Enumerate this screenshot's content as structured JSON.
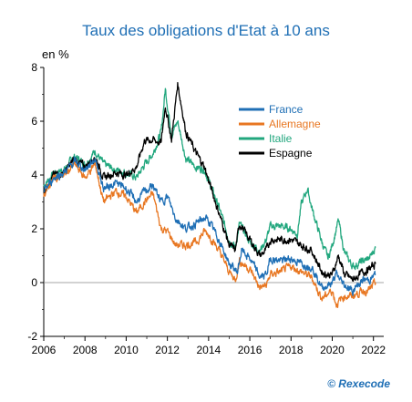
{
  "chart_data": {
    "type": "line",
    "title": "Taux des obligations d'Etat à 10 ans",
    "ylabel": "en %",
    "source": "© Rexecode",
    "xlim": [
      2006,
      2022.5
    ],
    "ylim": [
      -2,
      8
    ],
    "x_ticks": [
      "2006",
      "2008",
      "2010",
      "2012",
      "2014",
      "2016",
      "2018",
      "2020",
      "2022"
    ],
    "y_ticks": [
      "-2",
      "0",
      "2",
      "4",
      "6",
      "8"
    ],
    "grid": false,
    "legend_position": "top-right",
    "series": [
      {
        "name": "France",
        "color": "#1f6fb5",
        "points": [
          [
            2006.0,
            3.4
          ],
          [
            2006.5,
            3.9
          ],
          [
            2007.0,
            4.1
          ],
          [
            2007.5,
            4.5
          ],
          [
            2008.0,
            4.2
          ],
          [
            2008.5,
            4.6
          ],
          [
            2008.9,
            3.5
          ],
          [
            2009.5,
            3.7
          ],
          [
            2010.0,
            3.5
          ],
          [
            2010.5,
            3.0
          ],
          [
            2010.9,
            3.4
          ],
          [
            2011.3,
            3.6
          ],
          [
            2011.7,
            3.0
          ],
          [
            2012.0,
            3.2
          ],
          [
            2012.4,
            2.4
          ],
          [
            2012.9,
            2.0
          ],
          [
            2013.4,
            2.2
          ],
          [
            2013.8,
            2.4
          ],
          [
            2014.0,
            2.3
          ],
          [
            2014.5,
            1.6
          ],
          [
            2015.0,
            0.7
          ],
          [
            2015.4,
            0.4
          ],
          [
            2015.6,
            1.2
          ],
          [
            2016.0,
            0.9
          ],
          [
            2016.5,
            0.2
          ],
          [
            2016.8,
            0.3
          ],
          [
            2017.0,
            0.9
          ],
          [
            2017.5,
            0.8
          ],
          [
            2018.0,
            0.9
          ],
          [
            2018.5,
            0.7
          ],
          [
            2019.0,
            0.6
          ],
          [
            2019.5,
            -0.2
          ],
          [
            2019.8,
            -0.1
          ],
          [
            2020.0,
            0.0
          ],
          [
            2020.2,
            0.3
          ],
          [
            2020.6,
            -0.1
          ],
          [
            2021.0,
            -0.3
          ],
          [
            2021.5,
            0.1
          ],
          [
            2021.8,
            0.1
          ],
          [
            2022.1,
            0.3
          ]
        ]
      },
      {
        "name": "Allemagne",
        "color": "#e87722",
        "points": [
          [
            2006.0,
            3.3
          ],
          [
            2006.5,
            3.9
          ],
          [
            2007.0,
            4.0
          ],
          [
            2007.5,
            4.4
          ],
          [
            2008.0,
            3.9
          ],
          [
            2008.5,
            4.4
          ],
          [
            2008.9,
            3.0
          ],
          [
            2009.5,
            3.4
          ],
          [
            2010.0,
            3.2
          ],
          [
            2010.5,
            2.6
          ],
          [
            2010.9,
            3.0
          ],
          [
            2011.3,
            3.3
          ],
          [
            2011.7,
            2.0
          ],
          [
            2012.0,
            1.9
          ],
          [
            2012.4,
            1.4
          ],
          [
            2012.9,
            1.4
          ],
          [
            2013.4,
            1.5
          ],
          [
            2013.8,
            1.9
          ],
          [
            2014.0,
            1.8
          ],
          [
            2014.5,
            1.2
          ],
          [
            2015.0,
            0.4
          ],
          [
            2015.3,
            0.1
          ],
          [
            2015.5,
            0.8
          ],
          [
            2016.0,
            0.5
          ],
          [
            2016.5,
            -0.2
          ],
          [
            2016.8,
            -0.1
          ],
          [
            2017.0,
            0.3
          ],
          [
            2017.5,
            0.4
          ],
          [
            2018.0,
            0.6
          ],
          [
            2018.5,
            0.4
          ],
          [
            2019.0,
            0.2
          ],
          [
            2019.5,
            -0.6
          ],
          [
            2019.8,
            -0.4
          ],
          [
            2020.0,
            -0.3
          ],
          [
            2020.2,
            -0.8
          ],
          [
            2020.6,
            -0.5
          ],
          [
            2021.0,
            -0.5
          ],
          [
            2021.5,
            -0.3
          ],
          [
            2021.8,
            -0.3
          ],
          [
            2022.1,
            0.0
          ]
        ]
      },
      {
        "name": "Italie",
        "color": "#22a77e",
        "points": [
          [
            2006.0,
            3.6
          ],
          [
            2006.5,
            4.1
          ],
          [
            2007.0,
            4.2
          ],
          [
            2007.5,
            4.7
          ],
          [
            2008.0,
            4.4
          ],
          [
            2008.5,
            4.9
          ],
          [
            2008.9,
            4.4
          ],
          [
            2009.5,
            4.2
          ],
          [
            2010.0,
            4.1
          ],
          [
            2010.5,
            3.9
          ],
          [
            2010.9,
            4.4
          ],
          [
            2011.3,
            4.8
          ],
          [
            2011.7,
            5.6
          ],
          [
            2011.9,
            7.2
          ],
          [
            2012.2,
            5.5
          ],
          [
            2012.5,
            6.0
          ],
          [
            2012.9,
            4.6
          ],
          [
            2013.4,
            4.3
          ],
          [
            2013.8,
            4.2
          ],
          [
            2014.0,
            3.8
          ],
          [
            2014.5,
            2.8
          ],
          [
            2015.0,
            1.6
          ],
          [
            2015.3,
            1.3
          ],
          [
            2015.5,
            2.2
          ],
          [
            2016.0,
            1.5
          ],
          [
            2016.5,
            1.2
          ],
          [
            2016.8,
            1.6
          ],
          [
            2017.0,
            2.1
          ],
          [
            2017.5,
            2.1
          ],
          [
            2018.0,
            2.0
          ],
          [
            2018.3,
            1.8
          ],
          [
            2018.5,
            2.9
          ],
          [
            2018.8,
            3.5
          ],
          [
            2019.0,
            2.8
          ],
          [
            2019.5,
            1.5
          ],
          [
            2019.8,
            0.9
          ],
          [
            2020.0,
            1.4
          ],
          [
            2020.3,
            2.3
          ],
          [
            2020.6,
            1.1
          ],
          [
            2021.0,
            0.6
          ],
          [
            2021.5,
            0.8
          ],
          [
            2021.8,
            0.9
          ],
          [
            2022.1,
            1.3
          ]
        ]
      },
      {
        "name": "Espagne",
        "color": "#000000",
        "points": [
          [
            2006.0,
            3.4
          ],
          [
            2006.5,
            4.0
          ],
          [
            2007.0,
            4.1
          ],
          [
            2007.5,
            4.6
          ],
          [
            2008.0,
            4.3
          ],
          [
            2008.5,
            4.7
          ],
          [
            2008.9,
            3.9
          ],
          [
            2009.5,
            4.1
          ],
          [
            2010.0,
            4.0
          ],
          [
            2010.5,
            4.3
          ],
          [
            2010.9,
            5.3
          ],
          [
            2011.3,
            5.3
          ],
          [
            2011.7,
            5.2
          ],
          [
            2011.9,
            6.6
          ],
          [
            2012.2,
            5.3
          ],
          [
            2012.5,
            7.4
          ],
          [
            2012.9,
            5.6
          ],
          [
            2013.4,
            4.8
          ],
          [
            2013.8,
            4.3
          ],
          [
            2014.0,
            3.8
          ],
          [
            2014.5,
            2.6
          ],
          [
            2015.0,
            1.4
          ],
          [
            2015.3,
            1.2
          ],
          [
            2015.5,
            2.2
          ],
          [
            2016.0,
            1.6
          ],
          [
            2016.5,
            1.0
          ],
          [
            2016.8,
            1.2
          ],
          [
            2017.0,
            1.6
          ],
          [
            2017.5,
            1.6
          ],
          [
            2018.0,
            1.6
          ],
          [
            2018.5,
            1.4
          ],
          [
            2019.0,
            1.2
          ],
          [
            2019.5,
            0.4
          ],
          [
            2019.8,
            0.3
          ],
          [
            2020.0,
            0.3
          ],
          [
            2020.3,
            1.0
          ],
          [
            2020.6,
            0.3
          ],
          [
            2021.0,
            0.1
          ],
          [
            2021.5,
            0.4
          ],
          [
            2021.8,
            0.5
          ],
          [
            2022.1,
            0.7
          ]
        ]
      }
    ]
  }
}
